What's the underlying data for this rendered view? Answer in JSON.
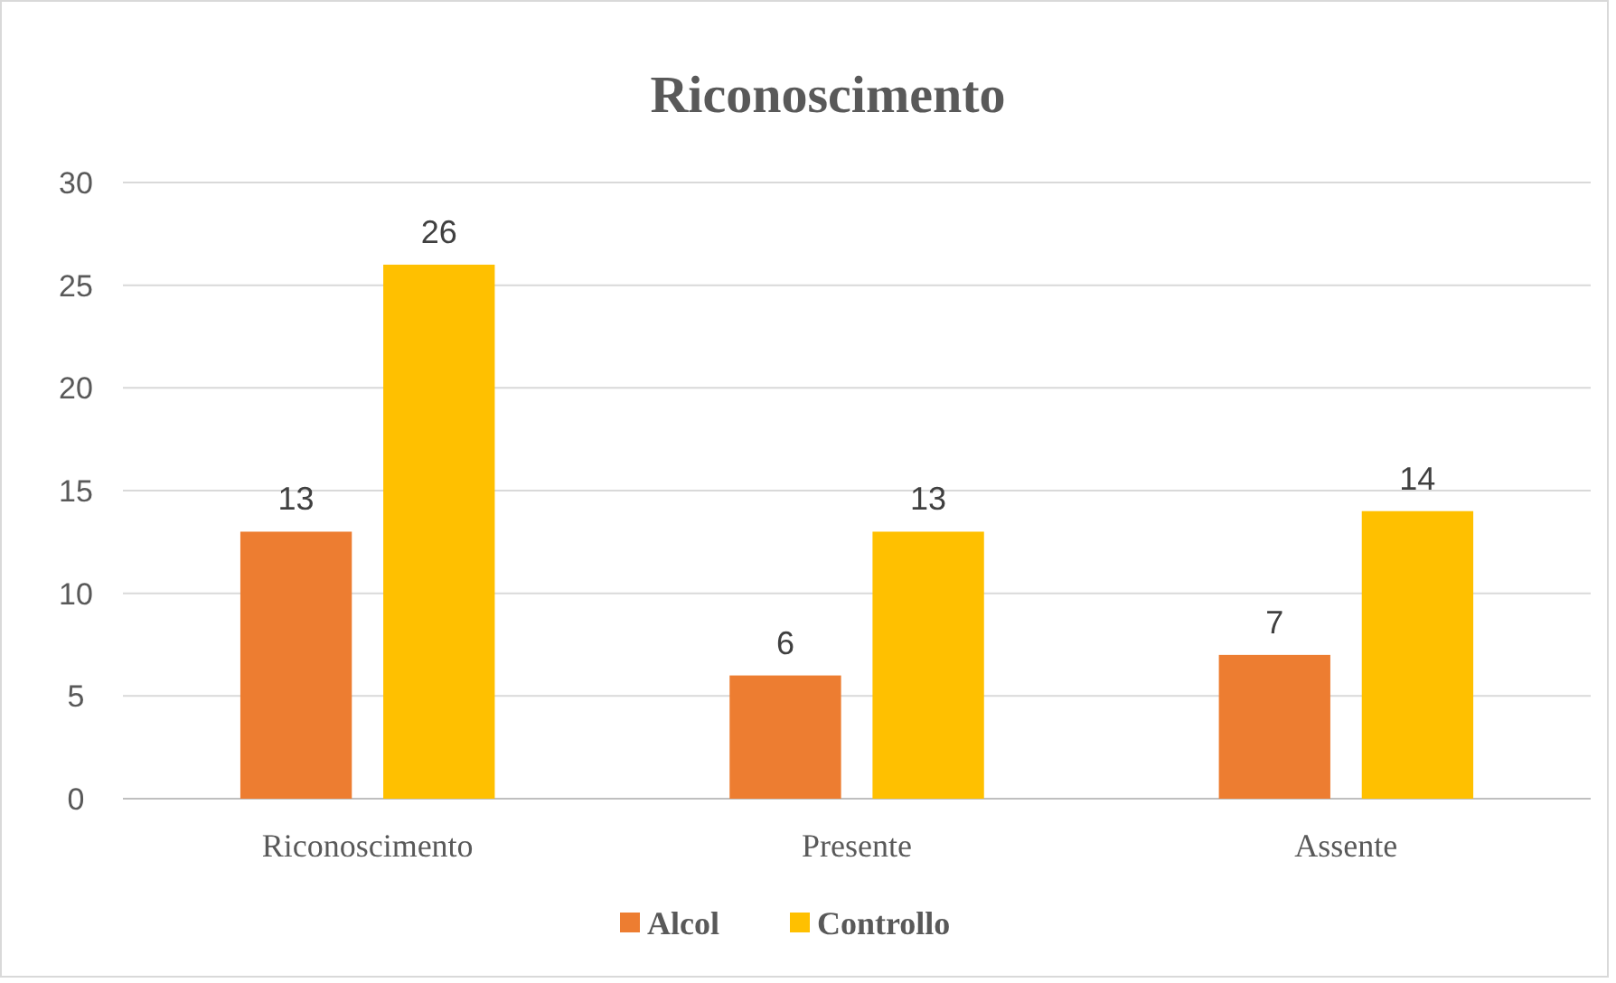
{
  "chart_data": {
    "type": "bar",
    "title": "Riconoscimento",
    "categories": [
      "Riconoscimento",
      "Presente",
      "Assente"
    ],
    "series": [
      {
        "name": "Alcol",
        "color": "#ed7d31",
        "values": [
          13,
          6,
          7
        ]
      },
      {
        "name": "Controllo",
        "color": "#ffc000",
        "values": [
          26,
          13,
          14
        ]
      }
    ],
    "ylim": [
      0,
      30
    ],
    "yticks": [
      0,
      5,
      10,
      15,
      20,
      25,
      30
    ],
    "grid": "y",
    "data_labels": true,
    "legend": "bottom"
  }
}
